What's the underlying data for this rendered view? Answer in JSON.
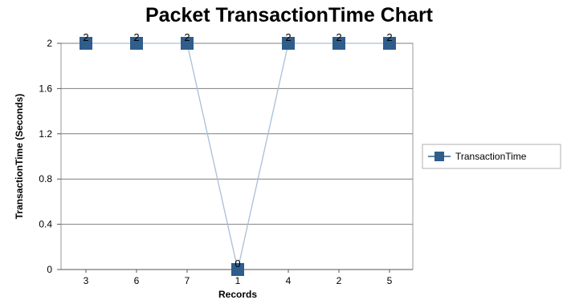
{
  "chart_data": {
    "type": "line",
    "title": "Packet TransactionTime  Chart",
    "xlabel": "Records",
    "ylabel": "TransactionTime (Seconds)",
    "categories": [
      "3",
      "6",
      "7",
      "1",
      "4",
      "2",
      "5"
    ],
    "series": [
      {
        "name": "TransactionTime",
        "values": [
          2,
          2,
          2,
          0,
          2,
          2,
          2
        ],
        "data_labels": [
          "2",
          "2",
          "2",
          "0",
          "2",
          "2",
          "2"
        ]
      }
    ],
    "ylim": [
      0,
      2
    ],
    "yticks": [
      "0",
      "0.4",
      "0.8",
      "1.2",
      "1.6",
      "2"
    ],
    "grid": "horizontal",
    "legend_position": "right",
    "colors": {
      "marker": "#2f5d8c",
      "line": "#a9bfd9",
      "grid": "#7f7f7f",
      "frame": "#9a9a9a"
    }
  }
}
